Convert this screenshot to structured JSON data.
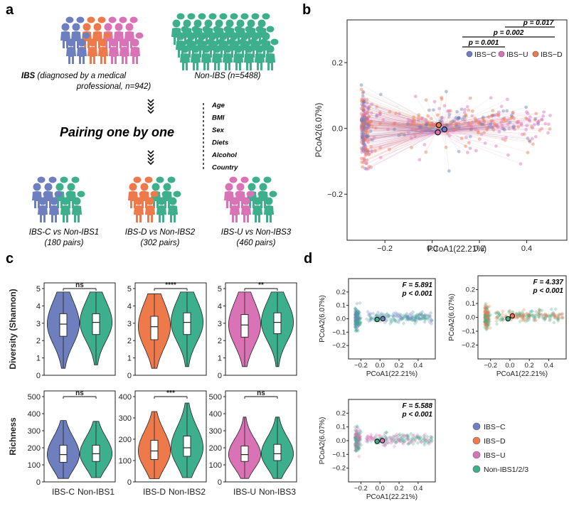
{
  "panels": {
    "a": {
      "label": "a",
      "ibs_text_pre": "IBS",
      "ibs_text_mid": " (diagnosed by a medical",
      "ibs_text_line2": "professional, n=942)",
      "nonibs_text": "Non-IBS (n=5488)",
      "pairing_text": "Pairing one by one",
      "factors": [
        "Age",
        "BMI",
        "Sex",
        "Diets",
        "Alcohol",
        "Country"
      ],
      "pairs": [
        {
          "line1": "IBS-C vs Non-IBS1",
          "line2": "(180 pairs)"
        },
        {
          "line1": "IBS-D vs Non-IBS2",
          "line2": "(302 pairs)"
        },
        {
          "line1": "IBS-U vs Non-IBS3",
          "line2": "(460 pairs)"
        }
      ]
    },
    "b": {
      "label": "b"
    },
    "c": {
      "label": "c"
    },
    "d": {
      "label": "d"
    }
  },
  "colors": {
    "ibs_c": "#6E7FBF",
    "ibs_d": "#EE7A4C",
    "ibs_u": "#D973B6",
    "non_ibs": "#3DAF8C"
  },
  "chart_data": [
    {
      "id": "b",
      "type": "scatter",
      "title": "",
      "xlabel": "PCoA1(22.21%)",
      "ylabel": "PCoA2(6.07%)",
      "xlim": [
        -0.36,
        0.57
      ],
      "ylim": [
        -0.34,
        0.33
      ],
      "xticks": [
        -0.2,
        0,
        0.2,
        0.4
      ],
      "xtick_labels": [
        "−0.2",
        "0.0",
        "0.2",
        "0.4"
      ],
      "yticks": [
        -0.2,
        0,
        0.2
      ],
      "ytick_labels": [
        "−0.2",
        "0.0",
        "0.2"
      ],
      "legend": [
        "IBS−C",
        "IBS−U",
        "IBS−D"
      ],
      "legend_colors": [
        "#6E7FBF",
        "#D973B6",
        "#EE7A4C"
      ],
      "centroids": [
        {
          "group": "IBS−C",
          "x": 0.052,
          "y": -0.003,
          "color": "#6E7FBF"
        },
        {
          "group": "IBS−D",
          "x": 0.028,
          "y": 0.01,
          "color": "#EE7A4C"
        },
        {
          "group": "IBS−U",
          "x": 0.024,
          "y": -0.012,
          "color": "#D973B6"
        }
      ],
      "significance": [
        {
          "label": "p = 0.001",
          "pair": [
            "IBS−C",
            "IBS−U"
          ]
        },
        {
          "label": "p = 0.002",
          "pair": [
            "IBS−C",
            "IBS−D"
          ]
        },
        {
          "label": "p = 0.017",
          "pair": [
            "IBS−U",
            "IBS−D"
          ]
        }
      ]
    },
    {
      "id": "c",
      "type": "violin",
      "row_labels": [
        "Diversity (Shannon)",
        "Richness"
      ],
      "comparisons": [
        {
          "groups": [
            "IBS-C",
            "Non-IBS1"
          ],
          "colors": [
            "#6E7FBF",
            "#3DAF8C"
          ],
          "diversity": {
            "ylim": [
              0,
              5
            ],
            "yticks": [
              0,
              1,
              2,
              3,
              4,
              5
            ],
            "sig": "ns",
            "box": [
              {
                "q1": 2.25,
                "median": 2.95,
                "q3": 3.55,
                "min": 0.4,
                "max": 4.8
              },
              {
                "q1": 2.35,
                "median": 3.05,
                "q3": 3.55,
                "min": 0.6,
                "max": 4.8
              }
            ]
          },
          "richness": {
            "ylim": [
              0,
              500
            ],
            "yticks": [
              0,
              100,
              200,
              300,
              400,
              500
            ],
            "sig": "ns",
            "box": [
              {
                "q1": 115,
                "median": 160,
                "q3": 215,
                "min": 20,
                "max": 360
              },
              {
                "q1": 120,
                "median": 165,
                "q3": 215,
                "min": 25,
                "max": 355
              }
            ]
          }
        },
        {
          "groups": [
            "IBS-D",
            "Non-IBS2"
          ],
          "colors": [
            "#EE7A4C",
            "#3DAF8C"
          ],
          "diversity": {
            "ylim": [
              0,
              5
            ],
            "yticks": [
              0,
              1,
              2,
              3,
              4,
              5
            ],
            "sig": "****",
            "box": [
              {
                "q1": 2.05,
                "median": 2.8,
                "q3": 3.4,
                "min": 0.4,
                "max": 4.7
              },
              {
                "q1": 2.35,
                "median": 3.05,
                "q3": 3.6,
                "min": 0.5,
                "max": 4.8
              }
            ]
          },
          "richness": {
            "ylim": [
              0,
              400
            ],
            "yticks": [
              0,
              100,
              200,
              300,
              400
            ],
            "sig": "***",
            "box": [
              {
                "q1": 105,
                "median": 145,
                "q3": 195,
                "min": 15,
                "max": 330
              },
              {
                "q1": 120,
                "median": 160,
                "q3": 215,
                "min": 20,
                "max": 370
              }
            ]
          }
        },
        {
          "groups": [
            "IBS-U",
            "Non-IBS3"
          ],
          "colors": [
            "#D973B6",
            "#3DAF8C"
          ],
          "diversity": {
            "ylim": [
              0,
              5
            ],
            "yticks": [
              0,
              1,
              2,
              3,
              4,
              5
            ],
            "sig": "**",
            "box": [
              {
                "q1": 2.2,
                "median": 2.9,
                "q3": 3.5,
                "min": 0.5,
                "max": 4.8
              },
              {
                "q1": 2.4,
                "median": 3.05,
                "q3": 3.6,
                "min": 0.5,
                "max": 4.8
              }
            ]
          },
          "richness": {
            "ylim": [
              0,
              500
            ],
            "yticks": [
              0,
              100,
              200,
              300,
              400,
              500
            ],
            "sig": "ns",
            "box": [
              {
                "q1": 120,
                "median": 160,
                "q3": 210,
                "min": 20,
                "max": 380
              },
              {
                "q1": 125,
                "median": 165,
                "q3": 220,
                "min": 20,
                "max": 380
              }
            ]
          }
        }
      ]
    },
    {
      "id": "d",
      "type": "scatter",
      "xlabel": "PCoA1(22.21%)",
      "ylabel": "PCoA2(6.07%)",
      "xlim": [
        -0.33,
        0.58
      ],
      "ylim": [
        -0.3,
        0.3
      ],
      "xticks": [
        -0.2,
        0,
        0.2,
        0.4
      ],
      "xtick_labels": [
        "−0.2",
        "0.0",
        "0.2",
        "0.4"
      ],
      "yticks": [
        -0.2,
        -0.1,
        0,
        0.1,
        0.2
      ],
      "ytick_labels": [
        "−0.2",
        "−0.1",
        "0.0",
        "0.1",
        "0.2"
      ],
      "subplots": [
        {
          "group": "IBS−C",
          "color": "#6E7FBF",
          "f_label": "F = 5.891",
          "p_label": "p < 0.001",
          "centroids": [
            {
              "x": -0.03,
              "y": -0.005,
              "color": "#3DAF8C"
            },
            {
              "x": 0.03,
              "y": 0,
              "color": "#6E7FBF"
            }
          ]
        },
        {
          "group": "IBS−D",
          "color": "#EE7A4C",
          "f_label": "F = 4.337",
          "p_label": "p < 0.001",
          "centroids": [
            {
              "x": -0.02,
              "y": -0.01,
              "color": "#3DAF8C"
            },
            {
              "x": 0.025,
              "y": 0.01,
              "color": "#EE7A4C"
            }
          ]
        },
        {
          "group": "IBS−U",
          "color": "#D973B6",
          "f_label": "F = 5.588",
          "p_label": "p < 0.001",
          "centroids": [
            {
              "x": -0.03,
              "y": -0.005,
              "color": "#3DAF8C"
            },
            {
              "x": 0.025,
              "y": 0,
              "color": "#D973B6"
            }
          ]
        }
      ],
      "legend": [
        "IBS−C",
        "IBS−D",
        "IBS−U",
        "Non-IBS1/2/3"
      ],
      "legend_colors": [
        "#6E7FBF",
        "#EE7A4C",
        "#D973B6",
        "#3DAF8C"
      ]
    }
  ]
}
